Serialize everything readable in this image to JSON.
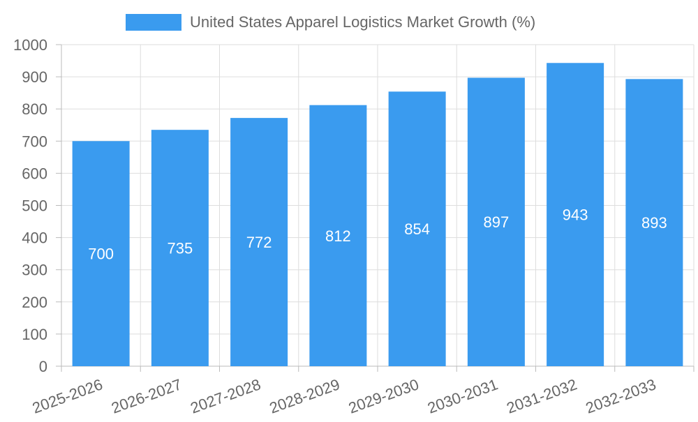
{
  "chart_data": {
    "type": "bar",
    "title": "",
    "xlabel": "",
    "ylabel": "",
    "categories": [
      "2025-2026",
      "2026-2027",
      "2027-2028",
      "2028-2029",
      "2029-2030",
      "2030-2031",
      "2031-2032",
      "2032-2033"
    ],
    "series": [
      {
        "name": "United States Apparel Logistics Market Growth (%)",
        "values": [
          700,
          735,
          772,
          812,
          854,
          897,
          943,
          893
        ],
        "color": "#3a9bef"
      }
    ],
    "ylim": [
      0,
      1000
    ],
    "yticks": [
      0,
      100,
      200,
      300,
      400,
      500,
      600,
      700,
      800,
      900,
      1000
    ],
    "grid": true,
    "legend": "top-center",
    "data_labels": true
  }
}
